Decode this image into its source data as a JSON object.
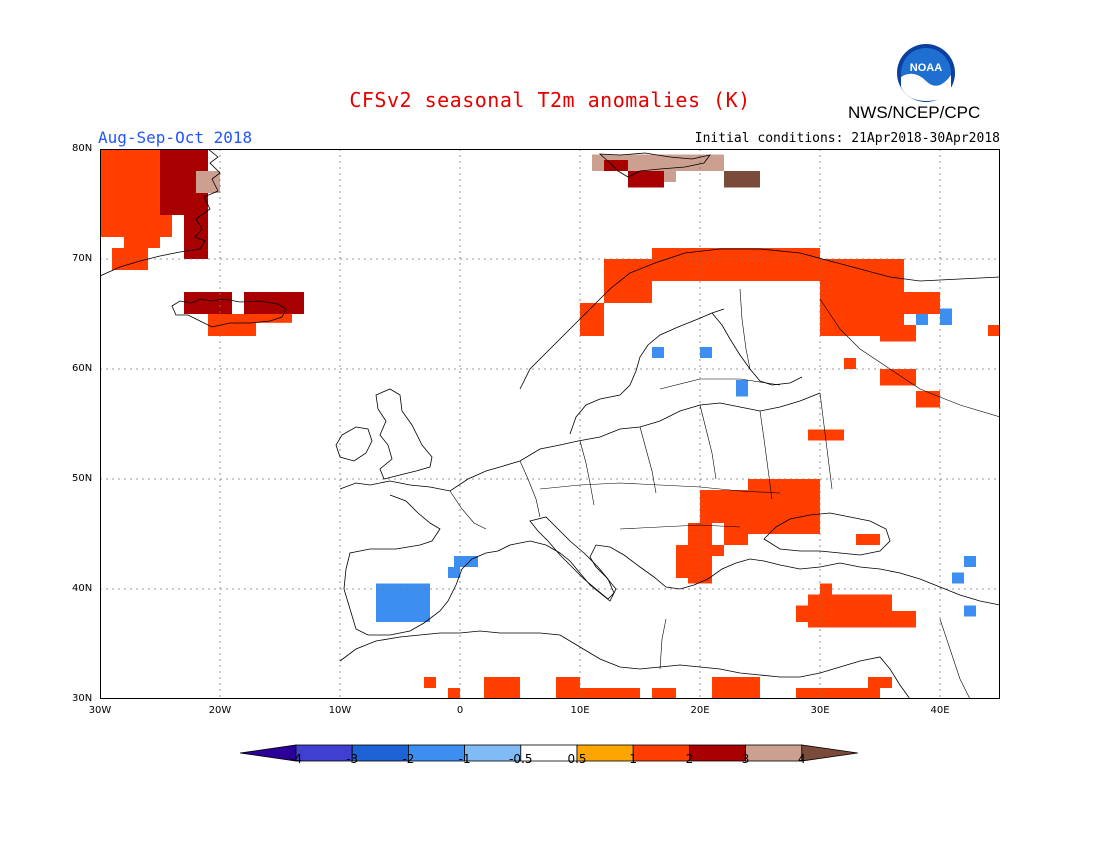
{
  "header": {
    "title": "CFSv2 seasonal T2m anomalies (K)",
    "period": "Aug-Sep-Oct 2018",
    "initial_conditions": "Initial conditions: 21Apr2018-30Apr2018",
    "org": "NWS/NCEP/CPC",
    "logo_text": "NOAA"
  },
  "map": {
    "lon_range": [
      -30,
      45
    ],
    "lat_range": [
      30,
      80
    ],
    "x_ticks": [
      {
        "value": -30,
        "label": "30W"
      },
      {
        "value": -20,
        "label": "20W"
      },
      {
        "value": -10,
        "label": "10W"
      },
      {
        "value": 0,
        "label": "0"
      },
      {
        "value": 10,
        "label": "10E"
      },
      {
        "value": 20,
        "label": "20E"
      },
      {
        "value": 30,
        "label": "30E"
      },
      {
        "value": 40,
        "label": "40E"
      }
    ],
    "y_ticks": [
      {
        "value": 30,
        "label": "30N"
      },
      {
        "value": 40,
        "label": "40N"
      },
      {
        "value": 50,
        "label": "50N"
      },
      {
        "value": 60,
        "label": "60N"
      },
      {
        "value": 70,
        "label": "70N"
      },
      {
        "value": 80,
        "label": "80N"
      }
    ],
    "anomaly_cells": [
      {
        "lon": [
          -30,
          -24
        ],
        "lat": [
          72,
          80
        ],
        "cls": "1"
      },
      {
        "lon": [
          -25,
          -21
        ],
        "lat": [
          74,
          80
        ],
        "cls": "2"
      },
      {
        "lon": [
          -23,
          -21
        ],
        "lat": [
          70,
          74
        ],
        "cls": "2"
      },
      {
        "lon": [
          -22,
          -20
        ],
        "lat": [
          76,
          78
        ],
        "cls": "3"
      },
      {
        "lon": [
          -28,
          -25
        ],
        "lat": [
          71,
          74
        ],
        "cls": "1"
      },
      {
        "lon": [
          -29,
          -26
        ],
        "lat": [
          69,
          71
        ],
        "cls": "1"
      },
      {
        "lon": [
          -23,
          -19
        ],
        "lat": [
          65,
          67
        ],
        "cls": "2"
      },
      {
        "lon": [
          -18,
          -13
        ],
        "lat": [
          65,
          67
        ],
        "cls": "2"
      },
      {
        "lon": [
          -21,
          -17
        ],
        "lat": [
          63,
          65
        ],
        "cls": "1"
      },
      {
        "lon": [
          -18,
          -14
        ],
        "lat": [
          64.2,
          65
        ],
        "cls": "1"
      },
      {
        "lon": [
          11,
          15
        ],
        "lat": [
          78,
          79.5
        ],
        "cls": "3"
      },
      {
        "lon": [
          15,
          18
        ],
        "lat": [
          77,
          79.5
        ],
        "cls": "3"
      },
      {
        "lon": [
          18,
          22
        ],
        "lat": [
          78,
          79.5
        ],
        "cls": "3"
      },
      {
        "lon": [
          14,
          17
        ],
        "lat": [
          76.5,
          78
        ],
        "cls": "2"
      },
      {
        "lon": [
          22,
          25
        ],
        "lat": [
          76.5,
          78
        ],
        "cls": "4"
      },
      {
        "lon": [
          12,
          14
        ],
        "lat": [
          78,
          79
        ],
        "cls": "2"
      },
      {
        "lon": [
          12,
          16
        ],
        "lat": [
          66,
          70
        ],
        "cls": "1"
      },
      {
        "lon": [
          16,
          20
        ],
        "lat": [
          68,
          71
        ],
        "cls": "1"
      },
      {
        "lon": [
          20,
          30
        ],
        "lat": [
          68,
          71
        ],
        "cls": "1"
      },
      {
        "lon": [
          30,
          37
        ],
        "lat": [
          67,
          70
        ],
        "cls": "1"
      },
      {
        "lon": [
          30,
          37
        ],
        "lat": [
          63,
          67
        ],
        "cls": "1"
      },
      {
        "lon": [
          37,
          40
        ],
        "lat": [
          65,
          67
        ],
        "cls": "1"
      },
      {
        "lon": [
          35,
          38
        ],
        "lat": [
          62.5,
          64
        ],
        "cls": "1"
      },
      {
        "lon": [
          10,
          12
        ],
        "lat": [
          63,
          66
        ],
        "cls": "1"
      },
      {
        "lon": [
          44,
          45
        ],
        "lat": [
          63,
          64
        ],
        "cls": "1"
      },
      {
        "lon": [
          35,
          38
        ],
        "lat": [
          58.5,
          60
        ],
        "cls": "1"
      },
      {
        "lon": [
          32,
          33
        ],
        "lat": [
          60,
          61
        ],
        "cls": "1"
      },
      {
        "lon": [
          38,
          40
        ],
        "lat": [
          56.5,
          58
        ],
        "cls": "1"
      },
      {
        "lon": [
          29,
          32
        ],
        "lat": [
          53.5,
          54.5
        ],
        "cls": "1"
      },
      {
        "lon": [
          24,
          30
        ],
        "lat": [
          45,
          50
        ],
        "cls": "1"
      },
      {
        "lon": [
          22,
          24
        ],
        "lat": [
          44,
          49
        ],
        "cls": "1"
      },
      {
        "lon": [
          20,
          22
        ],
        "lat": [
          46,
          49
        ],
        "cls": "1"
      },
      {
        "lon": [
          19,
          21
        ],
        "lat": [
          40.5,
          46
        ],
        "cls": "1"
      },
      {
        "lon": [
          18,
          19.5
        ],
        "lat": [
          41,
          44
        ],
        "cls": "1"
      },
      {
        "lon": [
          21,
          22
        ],
        "lat": [
          43,
          44
        ],
        "cls": "1"
      },
      {
        "lon": [
          33,
          35
        ],
        "lat": [
          44,
          45
        ],
        "cls": "1"
      },
      {
        "lon": [
          29,
          36
        ],
        "lat": [
          36.5,
          39.5
        ],
        "cls": "1"
      },
      {
        "lon": [
          36,
          38
        ],
        "lat": [
          36.5,
          38
        ],
        "cls": "1"
      },
      {
        "lon": [
          28,
          30
        ],
        "lat": [
          37,
          38.5
        ],
        "cls": "1"
      },
      {
        "lon": [
          30,
          31
        ],
        "lat": [
          39.5,
          40.5
        ],
        "cls": "1"
      },
      {
        "lon": [
          -3,
          -2
        ],
        "lat": [
          31,
          32
        ],
        "cls": "1"
      },
      {
        "lon": [
          -1,
          0
        ],
        "lat": [
          30,
          31
        ],
        "cls": "1"
      },
      {
        "lon": [
          2,
          5
        ],
        "lat": [
          30,
          32
        ],
        "cls": "1"
      },
      {
        "lon": [
          8,
          10
        ],
        "lat": [
          30,
          32
        ],
        "cls": "1"
      },
      {
        "lon": [
          10,
          15
        ],
        "lat": [
          30,
          31
        ],
        "cls": "1"
      },
      {
        "lon": [
          16,
          18
        ],
        "lat": [
          30,
          31
        ],
        "cls": "1"
      },
      {
        "lon": [
          21,
          25
        ],
        "lat": [
          30,
          32
        ],
        "cls": "1"
      },
      {
        "lon": [
          28,
          35
        ],
        "lat": [
          30,
          31
        ],
        "cls": "1"
      },
      {
        "lon": [
          34,
          36
        ],
        "lat": [
          31,
          32
        ],
        "cls": "1"
      },
      {
        "lon": [
          -7,
          -2.5
        ],
        "lat": [
          37,
          40.5
        ],
        "cls": "-1"
      },
      {
        "lon": [
          -0.5,
          1.5
        ],
        "lat": [
          42,
          43
        ],
        "cls": "-1"
      },
      {
        "lon": [
          -1,
          0
        ],
        "lat": [
          41,
          42
        ],
        "cls": "-1"
      },
      {
        "lon": [
          16,
          17
        ],
        "lat": [
          61,
          62
        ],
        "cls": "-1"
      },
      {
        "lon": [
          20,
          21
        ],
        "lat": [
          61,
          62
        ],
        "cls": "-1"
      },
      {
        "lon": [
          23,
          24
        ],
        "lat": [
          57.5,
          59
        ],
        "cls": "-1"
      },
      {
        "lon": [
          38,
          39
        ],
        "lat": [
          64,
          65
        ],
        "cls": "-1"
      },
      {
        "lon": [
          40,
          41
        ],
        "lat": [
          64,
          65.5
        ],
        "cls": "-1"
      },
      {
        "lon": [
          41,
          42
        ],
        "lat": [
          40.5,
          41.5
        ],
        "cls": "-1"
      },
      {
        "lon": [
          42,
          43
        ],
        "lat": [
          42,
          43
        ],
        "cls": "-1"
      },
      {
        "lon": [
          42,
          43
        ],
        "lat": [
          37.5,
          38.5
        ],
        "cls": "-1"
      }
    ]
  },
  "legend": {
    "boxes": [
      {
        "cls": "-4",
        "color": "#2a0099"
      },
      {
        "cls": "-3",
        "color": "#4040d0"
      },
      {
        "cls": "-2",
        "color": "#1e63d6"
      },
      {
        "cls": "-1",
        "color": "#3c8ff0"
      },
      {
        "cls": "-0.5",
        "color": "#80bbf5"
      },
      {
        "cls": "0",
        "color": "#ffffff"
      },
      {
        "cls": "0.5",
        "color": "#ffa500"
      },
      {
        "cls": "1",
        "color": "#ff3e00"
      },
      {
        "cls": "2",
        "color": "#a80000"
      },
      {
        "cls": "3",
        "color": "#cca090"
      },
      {
        "cls": "4",
        "color": "#7a4a3a"
      }
    ],
    "labels": [
      "-4",
      "-3",
      "-2",
      "-1",
      "-0.5",
      "0.5",
      "1",
      "2",
      "3",
      "4"
    ]
  }
}
